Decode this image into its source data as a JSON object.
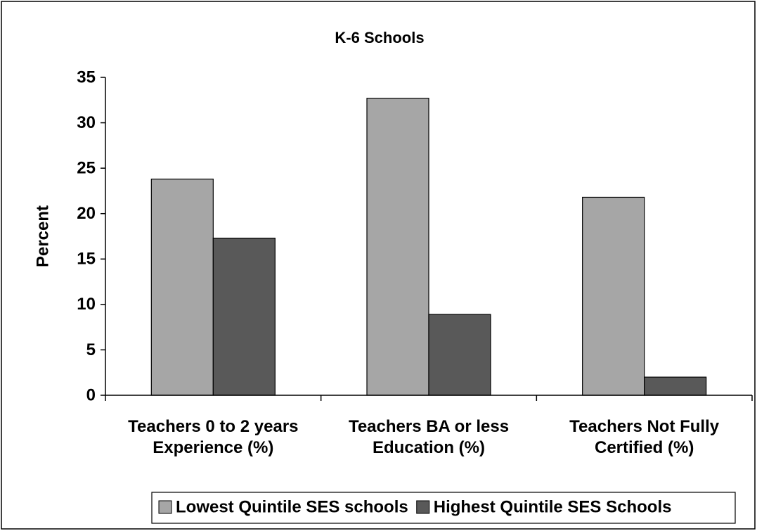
{
  "chart_data": {
    "type": "bar",
    "title": "K-6 Schools",
    "y_label": "Percent",
    "categories": [
      "Teachers 0 to 2 years Experience (%)",
      "Teachers BA or less Education  (%)",
      "Teachers Not Fully Certified  (%)"
    ],
    "series": [
      {
        "name": "Lowest Quintile SES schools",
        "color": "#a6a6a6",
        "values": [
          23.8,
          32.7,
          21.8
        ]
      },
      {
        "name": "Highest Quintile SES Schools",
        "color": "#595959",
        "values": [
          17.3,
          8.9,
          2.0
        ]
      }
    ],
    "ylim": [
      0,
      35
    ],
    "yticks": [
      0,
      5,
      10,
      15,
      20,
      25,
      30,
      35
    ],
    "grid": false,
    "legend": "bottom"
  }
}
